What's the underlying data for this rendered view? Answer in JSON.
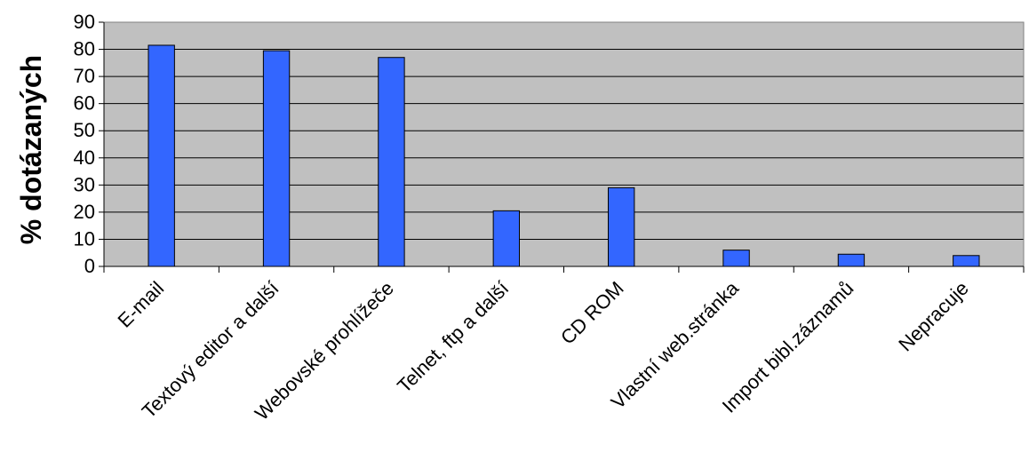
{
  "chart_data": {
    "type": "bar",
    "title": "",
    "xlabel": "",
    "ylabel": "% dotázaných",
    "categories": [
      "E-mail",
      "Textový editor a další",
      "Webovské prohlížeče",
      "Telnet, ftp a další",
      "CD ROM",
      "Vlastní web.stránka",
      "Import bibl.záznamů",
      "Nepracuje"
    ],
    "values": [
      81.5,
      79.5,
      77,
      20.5,
      29,
      6,
      4.5,
      4
    ],
    "ylim": [
      0,
      90
    ],
    "yticks": [
      0,
      10,
      20,
      30,
      40,
      50,
      60,
      70,
      80,
      90
    ],
    "grid": true,
    "legend": "none",
    "colors": {
      "bar": "#3366ff",
      "plot_bg": "#c0c0c0",
      "grid": "#000000"
    }
  }
}
